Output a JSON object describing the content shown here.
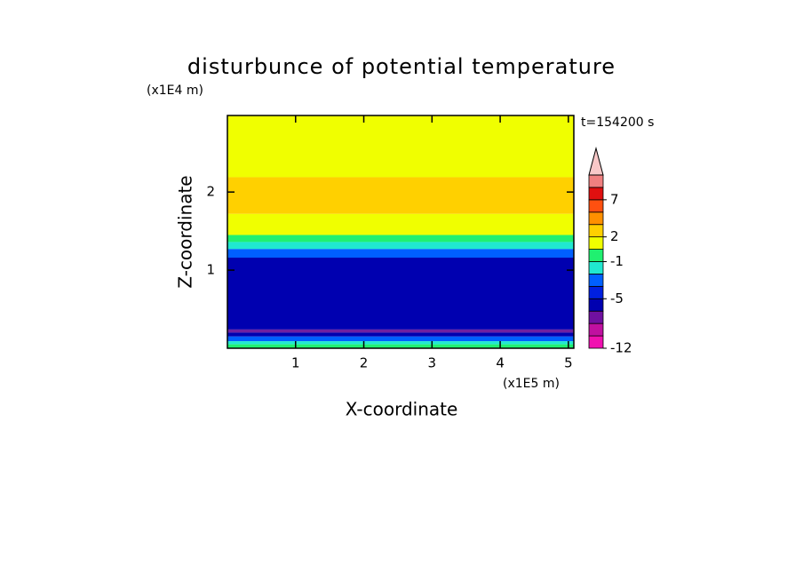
{
  "chart_data": {
    "type": "contour",
    "title": "disturbunce of potential temperature",
    "x_label": "X-coordinate",
    "y_label": "Z-coordinate",
    "x_unit": "(x1E5 m)",
    "y_unit": "(x1E4 m)",
    "time_label": "t=154200 s",
    "xlim": [
      0,
      5.08
    ],
    "xticks": [
      1,
      2,
      3,
      4,
      5
    ],
    "ylim": [
      0,
      2.98
    ],
    "yticks": [
      1,
      2
    ],
    "bands": [
      {
        "z": [
          2.19,
          2.98
        ],
        "color": "#f0ff00"
      },
      {
        "z": [
          1.72,
          2.19
        ],
        "color": "#ffd000"
      },
      {
        "z": [
          1.45,
          1.72
        ],
        "color": "#f0ff00"
      },
      {
        "z": [
          1.36,
          1.45
        ],
        "color": "#20f070"
      },
      {
        "z": [
          1.27,
          1.36
        ],
        "color": "#20e8d0"
      },
      {
        "z": [
          1.16,
          1.27
        ],
        "color": "#0060ff"
      },
      {
        "z": [
          0.24,
          1.16
        ],
        "color": "#0000b0"
      },
      {
        "z": [
          0.2,
          0.24
        ],
        "color": "#7020a0"
      },
      {
        "z": [
          0.15,
          0.2
        ],
        "color": "#0000b0"
      },
      {
        "z": [
          0.09,
          0.15
        ],
        "color": "#0060ff"
      },
      {
        "z": [
          0.05,
          0.09
        ],
        "color": "#20e8d0"
      },
      {
        "z": [
          0,
          0.05
        ],
        "color": "#20f070"
      }
    ],
    "colorbar": {
      "levels": [
        -12,
        -10,
        -8,
        -6,
        -5,
        -4,
        -2,
        -1,
        0,
        2,
        4,
        5,
        7,
        9,
        11
      ],
      "colors": [
        "#f010b0",
        "#c010a0",
        "#7010a0",
        "#0000b0",
        "#0020e0",
        "#0060ff",
        "#20e8d0",
        "#20f070",
        "#f0ff00",
        "#ffd000",
        "#ff9000",
        "#ff5010",
        "#e01010",
        "#f08080",
        "#f8c8c8"
      ],
      "ticks": [
        -12,
        -5,
        -1,
        2,
        7
      ]
    }
  }
}
